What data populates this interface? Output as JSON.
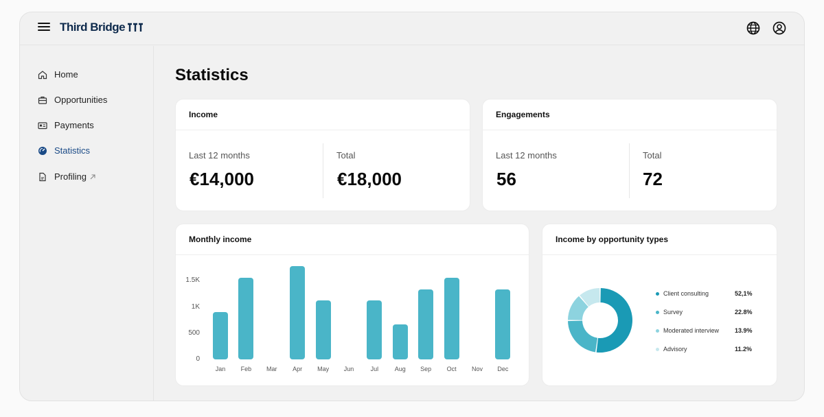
{
  "header": {
    "logo_text": "Third Bridge",
    "menu_icon": "menu-icon",
    "globe_icon": "globe-icon",
    "user_icon": "user-icon"
  },
  "sidebar": {
    "items": [
      {
        "label": "Home",
        "icon": "home-icon"
      },
      {
        "label": "Opportunities",
        "icon": "briefcase-icon"
      },
      {
        "label": "Payments",
        "icon": "payments-icon"
      },
      {
        "label": "Statistics",
        "icon": "statistics-icon",
        "active": true
      },
      {
        "label": "Profiling",
        "icon": "document-icon",
        "external": true
      }
    ]
  },
  "page": {
    "title": "Statistics"
  },
  "income": {
    "title": "Income",
    "last12_label": "Last 12 months",
    "last12_value": "€14,000",
    "total_label": "Total",
    "total_value": "€18,000"
  },
  "engagements": {
    "title": "Engagements",
    "last12_label": "Last 12 months",
    "last12_value": "56",
    "total_label": "Total",
    "total_value": "72"
  },
  "monthly": {
    "title": "Monthly income"
  },
  "types": {
    "title": "Income by opportunity types"
  },
  "colors": {
    "accent": "#4ab5c8",
    "brand": "#0e2a4c",
    "active_nav": "#1a4a86"
  },
  "chart_data": [
    {
      "type": "bar",
      "title": "Monthly income",
      "categories": [
        "Jan",
        "Feb",
        "Mar",
        "Apr",
        "May",
        "Jun",
        "Jul",
        "Aug",
        "Sep",
        "Oct",
        "Nov",
        "Dec"
      ],
      "values": [
        900,
        1550,
        0,
        1780,
        1120,
        0,
        1120,
        670,
        1340,
        1560,
        0,
        1340
      ],
      "yticks": [
        "0",
        "500",
        "1K",
        "1.5K"
      ],
      "ytick_values": [
        0,
        500,
        1000,
        1500
      ],
      "ylim": [
        0,
        1700
      ]
    },
    {
      "type": "pie",
      "title": "Income by opportunity types",
      "labels": [
        "Client consulting",
        "Survey",
        "Moderated interview",
        "Advisory"
      ],
      "values": [
        52.1,
        22.8,
        13.9,
        11.2
      ],
      "value_labels": [
        "52,1%",
        "22.8%",
        "13.9%",
        "11.2%"
      ],
      "colors": [
        "#1a9ab5",
        "#4ab5c8",
        "#8dd3df",
        "#c6e8ee"
      ]
    }
  ]
}
